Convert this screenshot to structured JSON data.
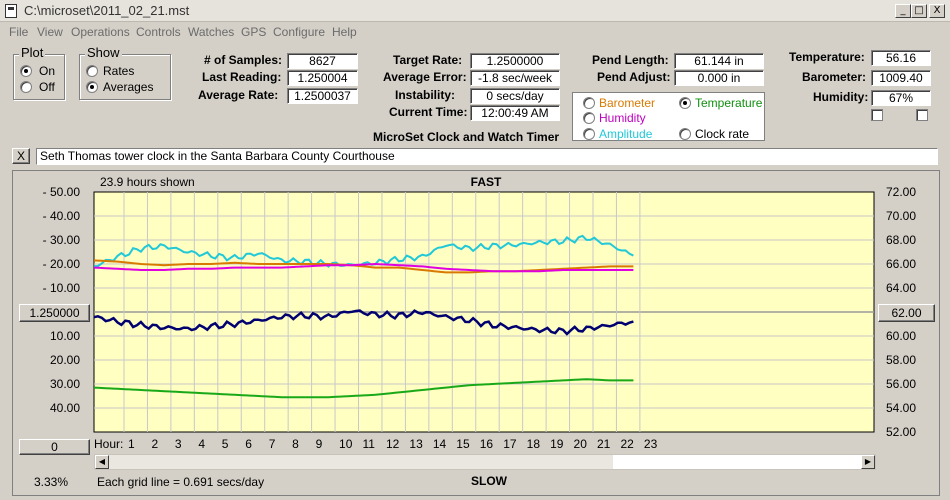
{
  "window": {
    "title": "C:\\microset\\2011_02_21.mst",
    "btn_min": "_",
    "btn_max": "□",
    "btn_close": "X"
  },
  "menu": [
    "File",
    "View",
    "Operations",
    "Controls",
    "Watches",
    "GPS",
    "Configure",
    "Help"
  ],
  "plot_group": {
    "title": "Plot",
    "options": [
      {
        "label": "On",
        "checked": true
      },
      {
        "label": "Off",
        "checked": false
      }
    ]
  },
  "show_group": {
    "title": "Show",
    "options": [
      {
        "label": "Rates",
        "checked": false
      },
      {
        "label": "Averages",
        "checked": true
      }
    ]
  },
  "stats": {
    "samples_label": "# of Samples:",
    "samples": "8627",
    "last_reading_label": "Last Reading:",
    "last_reading": "1.250004",
    "average_rate_label": "Average Rate:",
    "average_rate": "1.2500037",
    "target_rate_label": "Target Rate:",
    "target_rate": "1.2500000",
    "average_error_label": "Average Error:",
    "average_error": "-1.8 sec/week",
    "instability_label": "Instability:",
    "instability": "0 secs/day",
    "current_time_label": "Current Time:",
    "current_time": "12:00:49 AM",
    "pend_length_label": "Pend Length:",
    "pend_length": "61.144 in",
    "pend_adjust_label": "Pend Adjust:",
    "pend_adjust": "0.000 in",
    "temperature_label": "Temperature:",
    "temperature": "56.16",
    "barometer_label": "Barometer:",
    "barometer": "1009.40",
    "humidity_label": "Humidity:",
    "humidity": "67%"
  },
  "app_caption": "MicroSet Clock and Watch Timer",
  "series_select": [
    {
      "label": "Barometer",
      "color": "#d97a00",
      "checked": false
    },
    {
      "label": "Temperature",
      "color": "#109010",
      "checked": true
    },
    {
      "label": "Humidity",
      "color": "#c000c0",
      "checked": false
    },
    {
      "label": "Clock rate",
      "color": "#000000",
      "checked": false
    },
    {
      "label": "Amplitude",
      "color": "#20c8d8",
      "checked": false
    }
  ],
  "description": {
    "close_label": "X",
    "text": "Seth Thomas tower clock in the Santa Barbara County Courthouse"
  },
  "chart_header": {
    "hours_shown": "23.9 hours shown",
    "fast": "FAST",
    "slow": "SLOW",
    "grid_note": "Each grid line = 0.691 secs/day",
    "zoom": "3.33%"
  },
  "center_button": "1.250000",
  "offset_button": "0",
  "right_button": "62.00",
  "chart_data": {
    "type": "line",
    "x_label": "Hour:",
    "x_ticks": [
      "1",
      "2",
      "3",
      "4",
      "5",
      "6",
      "7",
      "8",
      "9",
      "10",
      "11",
      "12",
      "13",
      "14",
      "15",
      "16",
      "17",
      "18",
      "19",
      "20",
      "21",
      "22",
      "23"
    ],
    "left_ticks": [
      "- 50.00",
      "- 40.00",
      "- 30.00",
      "- 20.00",
      "- 10.00",
      "10.00",
      "20.00",
      "30.00",
      "40.00"
    ],
    "right_ticks": [
      "72.00",
      "70.00",
      "68.00",
      "66.00",
      "64.00",
      "60.00",
      "58.00",
      "56.00",
      "54.00",
      "52.00"
    ],
    "xlim": [
      0,
      24
    ],
    "right_ylim": [
      52,
      72
    ],
    "grid": true,
    "series": [
      {
        "name": "Amplitude",
        "color": "#20c8d8",
        "right_axis": [
          65.8,
          66.6,
          67.3,
          67.5,
          67.0,
          66.7,
          66.5,
          66.9,
          66.3,
          66.2,
          66.0,
          65.9,
          66.1,
          66.4,
          66.6,
          67.6,
          67.3,
          67.5,
          67.6,
          67.8,
          67.9,
          68.2,
          67.6,
          66.7
        ]
      },
      {
        "name": "Barometer",
        "color": "#d97a00",
        "right_axis": [
          66.3,
          66.2,
          66.0,
          65.9,
          66.0,
          66.0,
          66.1,
          66.0,
          66.0,
          66.0,
          66.0,
          65.9,
          65.7,
          65.7,
          65.5,
          65.3,
          65.3,
          65.4,
          65.4,
          65.5,
          65.6,
          65.7,
          65.8,
          65.8
        ]
      },
      {
        "name": "Humidity",
        "color": "#e000e0",
        "right_axis": [
          65.7,
          65.6,
          65.5,
          65.5,
          65.6,
          65.6,
          65.7,
          65.7,
          65.7,
          65.8,
          65.9,
          65.9,
          66.0,
          65.9,
          65.8,
          65.6,
          65.5,
          65.4,
          65.4,
          65.4,
          65.5,
          65.5,
          65.5,
          65.5
        ]
      },
      {
        "name": "Clock rate",
        "color": "#000070",
        "right_axis": [
          61.6,
          61.2,
          60.9,
          60.7,
          60.6,
          60.8,
          61.0,
          61.3,
          61.6,
          61.7,
          61.6,
          62.1,
          61.8,
          61.7,
          62.0,
          61.6,
          61.3,
          60.9,
          60.7,
          60.5,
          60.4,
          60.6,
          60.9,
          61.2
        ]
      },
      {
        "name": "Temperature",
        "color": "#18a818",
        "right_axis": [
          55.7,
          55.6,
          55.5,
          55.4,
          55.3,
          55.2,
          55.1,
          55.0,
          54.9,
          54.9,
          54.9,
          55.0,
          55.1,
          55.3,
          55.5,
          55.7,
          55.9,
          56.0,
          56.1,
          56.2,
          56.3,
          56.4,
          56.3,
          56.3
        ]
      }
    ]
  }
}
